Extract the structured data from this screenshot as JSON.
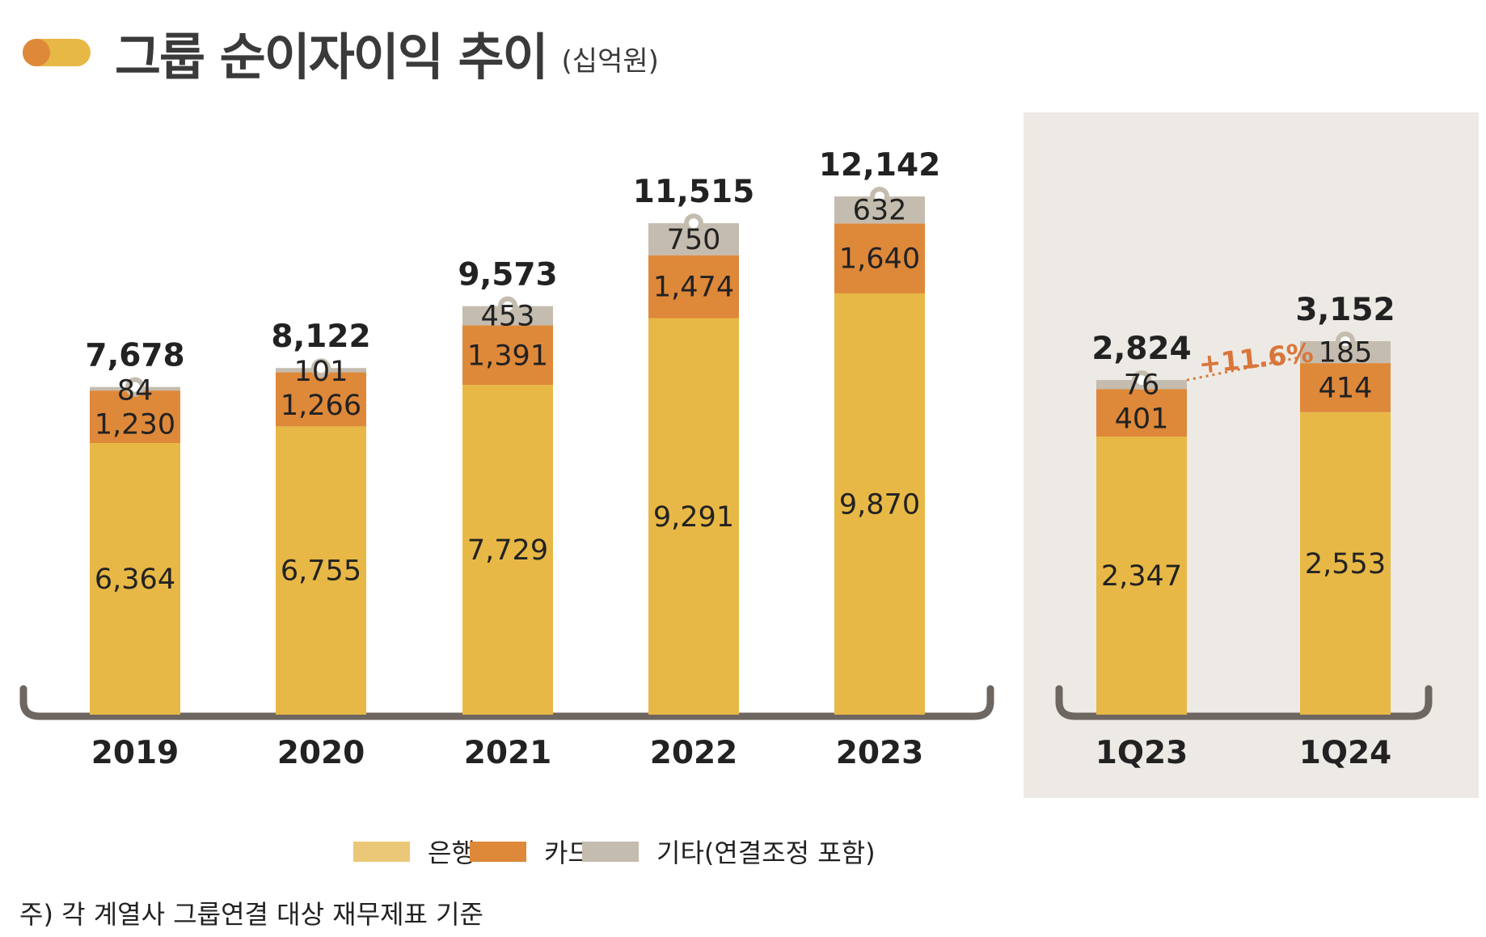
{
  "header": {
    "title": "그룹 순이자이익 추이",
    "unit": "(십억원)"
  },
  "colors": {
    "bank": "#E8B846",
    "card": "#DE883A",
    "other": "#C4BCAE",
    "legend_bank": "#EBC877",
    "panel": "#EDEAE5",
    "bracket": "#6E6660",
    "growth": "#D9763A"
  },
  "chart_data": [
    {
      "type": "bar",
      "stacked": true,
      "categories": [
        "2019",
        "2020",
        "2021",
        "2022",
        "2023"
      ],
      "series": [
        {
          "name": "은행",
          "values": [
            6364,
            6755,
            7729,
            9291,
            9870
          ]
        },
        {
          "name": "카드",
          "values": [
            1230,
            1266,
            1391,
            1474,
            1640
          ]
        },
        {
          "name": "기타(연결조정 포함)",
          "values": [
            84,
            101,
            453,
            750,
            632
          ]
        }
      ],
      "totals": [
        "7,678",
        "8,122",
        "9,573",
        "11,515",
        "12,142"
      ],
      "labels": {
        "bank": [
          "6,364",
          "6,755",
          "7,729",
          "9,291",
          "9,870"
        ],
        "card": [
          "1,230",
          "1,266",
          "1,391",
          "1,474",
          "1,640"
        ],
        "other": [
          "84",
          "101",
          "453",
          "750",
          "632"
        ]
      }
    },
    {
      "type": "bar",
      "stacked": true,
      "categories": [
        "1Q23",
        "1Q24"
      ],
      "series": [
        {
          "name": "은행",
          "values": [
            2347,
            2553
          ]
        },
        {
          "name": "카드",
          "values": [
            401,
            414
          ]
        },
        {
          "name": "기타(연결조정 포함)",
          "values": [
            76,
            185
          ]
        }
      ],
      "totals": [
        "2,824",
        "3,152"
      ],
      "labels": {
        "bank": [
          "2,347",
          "2,553"
        ],
        "card": [
          "401",
          "414"
        ],
        "other": [
          "76",
          "185"
        ]
      },
      "annotation": "+11.6%"
    }
  ],
  "legend": [
    "은행",
    "카드",
    "기타(연결조정 포함)"
  ],
  "footnote": "주) 각 계열사 그룹연결 대상 재무제표 기준"
}
